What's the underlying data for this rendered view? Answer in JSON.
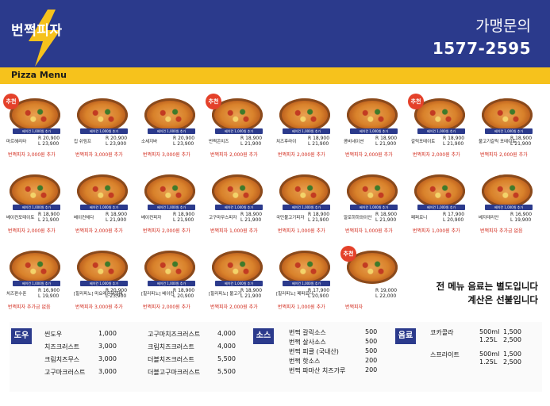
{
  "header": {
    "logo": "번쩍피자",
    "inquiry_label": "가맹문의",
    "phone": "1577-2595"
  },
  "menu_title": "Pizza Menu",
  "colors": {
    "navy": "#2b3a8c",
    "yellow": "#f6c21c",
    "red": "#d22a1c"
  },
  "pizzas": [
    {
      "name": "마르헤리타",
      "tag": "베이컨 1,000원 추가",
      "r": "R 20,900",
      "l": "L 23,900",
      "note": "번쩍피자 3,000원 추가",
      "badge": "추천"
    },
    {
      "name": "킵 쉬림프",
      "tag": "베이컨 1,000원 추가",
      "r": "R 20,900",
      "l": "L 23,900",
      "note": "번쩍피자 3,000원 추가",
      "badge": ""
    },
    {
      "name": "소세지바",
      "tag": "베이컨 1,000원 추가",
      "r": "R 20,900",
      "l": "L 23,900",
      "note": "번쩍피자 3,000원 추가",
      "badge": ""
    },
    {
      "name": "번쩍콘치즈",
      "tag": "베이컨 1,000원 추가",
      "r": "R 18,900",
      "l": "L 21,900",
      "note": "번쩍피자 2,000원 추가",
      "badge": "추천"
    },
    {
      "name": "치즈후라이",
      "tag": "베이컨 1,000원 추가",
      "r": "R 18,900",
      "l": "L 21,900",
      "note": "번쩍피자 2,000원 추가",
      "badge": ""
    },
    {
      "name": "콤비네이션",
      "tag": "베이컨 1,000원 추가",
      "r": "R 18,900",
      "l": "L 21,900",
      "note": "번쩍피자 2,000원 추가",
      "badge": ""
    },
    {
      "name": "갈릭포테이토",
      "tag": "베이컨 1,000원 추가",
      "r": "R 18,900",
      "l": "L 21,900",
      "note": "번쩍피자 2,000원 추가",
      "badge": "추천"
    },
    {
      "name": "불고기갈릭 포테이토",
      "tag": "베이컨 1,000원 추가",
      "r": "R 18,900",
      "l": "L 21,900",
      "note": "번쩍피자 2,000원 추가",
      "badge": ""
    },
    {
      "name": "베이컨포테이토",
      "tag": "베이컨 1,000원 추가",
      "r": "R 18,900",
      "l": "L 21,900",
      "note": "번쩍피자 2,000원 추가",
      "badge": ""
    },
    {
      "name": "베이컨체다",
      "tag": "베이컨 1,000원 추가",
      "r": "R 18,900",
      "l": "L 21,900",
      "note": "번쩍피자 2,000원 추가",
      "badge": ""
    },
    {
      "name": "베이컨피자",
      "tag": "베이컨 1,000원 추가",
      "r": "R 18,900",
      "l": "L 21,900",
      "note": "번쩍피자 2,000원 추가",
      "badge": ""
    },
    {
      "name": "고구마무스피자",
      "tag": "베이컨 1,000원 추가",
      "r": "R 18,900",
      "l": "L 21,900",
      "note": "번쩍피자 1,000원 추가",
      "badge": ""
    },
    {
      "name": "국민불고기피자",
      "tag": "베이컨 1,000원 추가",
      "r": "R 18,900",
      "l": "L 21,900",
      "note": "번쩍피자 1,000원 추가",
      "badge": ""
    },
    {
      "name": "알로하하와이안",
      "tag": "베이컨 1,000원 추가",
      "r": "R 18,900",
      "l": "L 21,900",
      "note": "번쩍피자 1,000원 추가",
      "badge": ""
    },
    {
      "name": "페퍼로니",
      "tag": "베이컨 1,000원 추가",
      "r": "R 17,900",
      "l": "L 20,900",
      "note": "번쩍피자 1,000원 추가",
      "badge": ""
    },
    {
      "name": "베지테리안",
      "tag": "베이컨 1,000원 추가",
      "r": "R 16,900",
      "l": "L 19,900",
      "note": "번쩍피자 추가금 없음",
      "badge": ""
    },
    {
      "name": "치즈판수폰",
      "tag": "베이컨 1,000원 추가",
      "r": "R 16,900",
      "l": "L 19,900",
      "note": "번쩍피자 추가금 없음",
      "badge": ""
    },
    {
      "name": "[힐리피노] 마요레몬워일버",
      "tag": "베이컨 1,000원 추가",
      "r": "R 20,900",
      "l": "L 23,900",
      "note": "번쩍피자 3,000원 추가",
      "badge": ""
    },
    {
      "name": "[힐리피노] 베이컨",
      "tag": "베이컨 1,000원 추가",
      "r": "R 18,900",
      "l": "L 20,900",
      "note": "번쩍피자 2,000원 추가",
      "badge": ""
    },
    {
      "name": "[힐리피노] 불고기",
      "tag": "베이컨 1,000원 추가",
      "r": "R 18,900",
      "l": "L 21,900",
      "note": "번쩍피자 2,000원 추가",
      "badge": ""
    },
    {
      "name": "[힐리피노] 페퍼로니",
      "tag": "베이컨 1,000원 추가",
      "r": "R 17,900",
      "l": "L 20,900",
      "note": "번쩍피자 1,000원 추가",
      "badge": ""
    },
    {
      "name": "",
      "tag": "",
      "r": "R 19,000",
      "l": "L 22,000",
      "note": "번쩍피자",
      "badge": "추천"
    }
  ],
  "notice": [
    "전 메뉴 음료는 별도입니다",
    "계산은 선불입니다"
  ],
  "dough": {
    "label": "도우",
    "left": [
      [
        "씬도우",
        "1,000"
      ],
      [
        "치즈크러스트",
        "3,000"
      ],
      [
        "크림치즈무스",
        "3,000"
      ],
      [
        "고구마크러스트",
        "3,000"
      ]
    ],
    "right": [
      [
        "고구마치즈크러스트",
        "4,000"
      ],
      [
        "크림치즈크러스트",
        "4,000"
      ],
      [
        "더블치즈크러스트",
        "5,500"
      ],
      [
        "더블고구마크러스트",
        "5,500"
      ]
    ]
  },
  "sauce": {
    "label": "소스",
    "items": [
      [
        "번쩍 갈릭소스",
        "500"
      ],
      [
        "번쩍 살사소스",
        "500"
      ],
      [
        "번쩍 피클 (국내산)",
        "500"
      ],
      [
        "번쩍 핫소스",
        "200"
      ],
      [
        "번쩍 파마산 치즈가루",
        "200"
      ]
    ]
  },
  "drinks": {
    "label": "음료",
    "items": [
      {
        "name": "코카콜라",
        "sizes": [
          "500ml",
          "1.25L"
        ],
        "prices": [
          "1,500",
          "2,500"
        ]
      },
      {
        "name": "스프라이트",
        "sizes": [
          "500ml",
          "1.25L"
        ],
        "prices": [
          "1,500",
          "2,500"
        ]
      }
    ]
  }
}
